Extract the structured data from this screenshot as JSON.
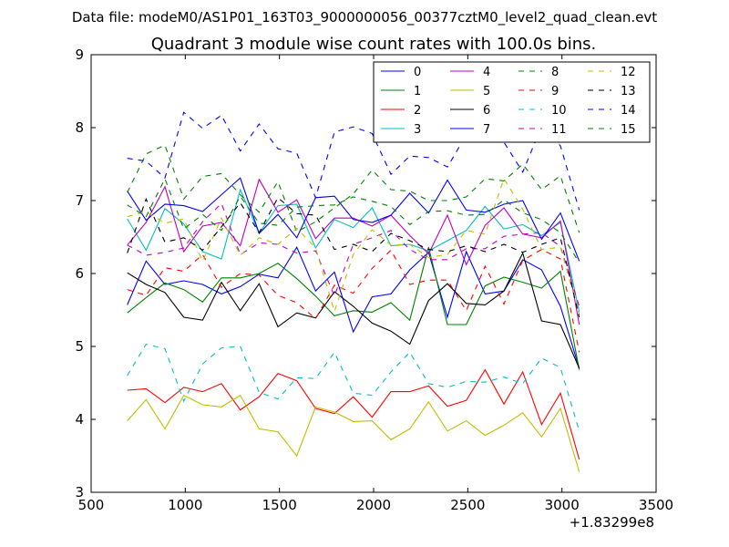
{
  "figure": {
    "suptitle": "Data file: modeM0/AS1P01_163T03_9000000056_00377cztM0_level2_quad_clean.evt",
    "offset_text": "+1.83299e8"
  },
  "chart_data": {
    "type": "line",
    "title": "Quadrant 3 module wise count rates with 100.0s bins.",
    "xlabel": "",
    "ylabel": "",
    "xlim": [
      500,
      3500
    ],
    "ylim": [
      3,
      9
    ],
    "x_ticks": [
      500,
      1000,
      1500,
      2000,
      2500,
      3000,
      3500
    ],
    "x_tick_labels": [
      "500",
      "1000",
      "1500",
      "2000",
      "2500",
      "3000",
      "3500"
    ],
    "y_ticks": [
      3,
      4,
      5,
      6,
      7,
      8,
      9
    ],
    "y_tick_labels": [
      "3",
      "4",
      "5",
      "6",
      "7",
      "8",
      "9"
    ],
    "x_offset": 183299000,
    "grid": false,
    "legend_position": "top-right",
    "x": [
      692,
      792,
      892,
      992,
      1092,
      1192,
      1292,
      1392,
      1492,
      1592,
      1692,
      1792,
      1892,
      1992,
      2092,
      2192,
      2292,
      2392,
      2492,
      2592,
      2692,
      2792,
      2892,
      2992,
      3092
    ],
    "series": [
      {
        "name": "0",
        "color": "#0000ff",
        "dash": "solid",
        "values": [
          5.57,
          6.17,
          5.85,
          5.9,
          5.85,
          5.72,
          5.82,
          5.99,
          5.94,
          6.36,
          5.76,
          6.02,
          5.2,
          5.68,
          5.72,
          6.05,
          6.29,
          5.4,
          6.3,
          5.72,
          5.76,
          6.19,
          6.05,
          5.55,
          4.7
        ]
      },
      {
        "name": "1",
        "color": "#008000",
        "dash": "solid",
        "values": [
          5.46,
          5.67,
          5.87,
          5.78,
          5.61,
          5.94,
          5.94,
          6.0,
          6.14,
          5.93,
          5.69,
          5.42,
          5.49,
          5.47,
          5.6,
          5.36,
          6.36,
          5.3,
          5.3,
          5.83,
          5.95,
          5.88,
          5.8,
          6.03,
          4.68
        ]
      },
      {
        "name": "2",
        "color": "#ff0000",
        "dash": "solid",
        "values": [
          4.4,
          4.42,
          4.23,
          4.44,
          4.38,
          4.49,
          4.13,
          4.31,
          4.63,
          4.53,
          4.15,
          4.08,
          4.31,
          4.03,
          4.38,
          4.38,
          4.46,
          4.18,
          4.26,
          4.68,
          4.21,
          4.65,
          3.93,
          4.36,
          3.45
        ]
      },
      {
        "name": "3",
        "color": "#00bfbf",
        "dash": "solid",
        "values": [
          6.75,
          6.32,
          6.89,
          6.68,
          6.3,
          6.2,
          7.15,
          6.55,
          6.93,
          6.95,
          6.35,
          6.74,
          6.63,
          6.9,
          6.38,
          6.4,
          6.31,
          6.45,
          6.59,
          6.92,
          6.61,
          6.67,
          6.52,
          6.7,
          5.47
        ]
      },
      {
        "name": "4",
        "color": "#bf00bf",
        "dash": "solid",
        "values": [
          6.39,
          6.7,
          7.19,
          6.3,
          6.65,
          6.7,
          6.38,
          7.29,
          6.84,
          7.01,
          6.48,
          6.76,
          6.76,
          6.65,
          6.8,
          6.52,
          6.27,
          6.8,
          6.12,
          6.66,
          6.9,
          6.54,
          6.49,
          6.72,
          5.3
        ]
      },
      {
        "name": "5",
        "color": "#bfbf00",
        "dash": "solid",
        "values": [
          3.98,
          4.27,
          3.87,
          4.33,
          4.2,
          4.17,
          4.33,
          3.87,
          3.83,
          3.5,
          4.17,
          4.1,
          3.97,
          3.98,
          3.72,
          3.87,
          4.24,
          3.84,
          3.98,
          3.78,
          3.92,
          4.09,
          3.76,
          4.15,
          3.28
        ]
      },
      {
        "name": "6",
        "color": "#000000",
        "dash": "solid",
        "values": [
          6.01,
          5.85,
          5.74,
          5.4,
          5.36,
          5.88,
          5.49,
          5.86,
          5.27,
          5.46,
          5.39,
          5.75,
          5.55,
          5.32,
          5.21,
          5.03,
          5.63,
          5.86,
          5.59,
          5.57,
          5.76,
          6.28,
          5.35,
          5.3,
          4.7
        ]
      },
      {
        "name": "7",
        "color": "#0000ff",
        "dash": "solid",
        "values": [
          7.13,
          6.73,
          6.95,
          6.93,
          6.85,
          7.08,
          7.31,
          6.55,
          6.81,
          6.49,
          7.04,
          7.06,
          6.74,
          6.7,
          6.8,
          7.1,
          6.83,
          7.28,
          6.87,
          6.84,
          6.95,
          7.0,
          6.47,
          6.83,
          6.17
        ]
      },
      {
        "name": "8",
        "color": "#008000",
        "dash": "dashed",
        "values": [
          7.11,
          7.64,
          7.76,
          7.02,
          7.33,
          7.37,
          7.08,
          6.84,
          7.26,
          6.57,
          6.71,
          6.9,
          7.09,
          7.42,
          7.15,
          7.13,
          7.0,
          7.0,
          7.05,
          7.3,
          7.27,
          7.5,
          7.15,
          7.34,
          6.56
        ]
      },
      {
        "name": "9",
        "color": "#ff0000",
        "dash": "dashed",
        "values": [
          5.78,
          5.7,
          6.08,
          6.03,
          6.26,
          5.81,
          6.0,
          5.98,
          5.7,
          5.6,
          5.38,
          5.84,
          5.73,
          6.07,
          6.32,
          5.85,
          5.91,
          5.91,
          5.49,
          6.1,
          5.58,
          6.18,
          6.33,
          6.2,
          4.92
        ]
      },
      {
        "name": "10",
        "color": "#00bfbf",
        "dash": "dashed",
        "values": [
          4.6,
          5.03,
          4.97,
          4.25,
          4.76,
          4.98,
          5.0,
          4.37,
          4.28,
          4.57,
          4.56,
          4.92,
          4.36,
          4.33,
          4.65,
          4.92,
          4.49,
          4.44,
          4.52,
          4.51,
          4.58,
          4.49,
          4.84,
          4.71,
          3.84
        ]
      },
      {
        "name": "11",
        "color": "#bf00bf",
        "dash": "dashed",
        "values": [
          6.39,
          6.25,
          6.29,
          6.35,
          6.71,
          6.96,
          6.26,
          6.42,
          6.4,
          6.28,
          6.31,
          5.69,
          6.4,
          6.49,
          6.59,
          6.33,
          6.19,
          6.19,
          6.34,
          6.34,
          6.51,
          6.54,
          6.56,
          6.37,
          5.55
        ]
      },
      {
        "name": "12",
        "color": "#bfbf00",
        "dash": "dashed",
        "values": [
          6.78,
          6.85,
          6.69,
          6.75,
          6.17,
          6.76,
          6.25,
          6.49,
          6.4,
          6.62,
          6.35,
          5.48,
          6.26,
          6.6,
          6.39,
          6.4,
          6.22,
          6.26,
          6.59,
          6.54,
          7.3,
          6.88,
          6.33,
          6.36,
          5.44
        ]
      },
      {
        "name": "13",
        "color": "#000000",
        "dash": "dashed",
        "values": [
          6.28,
          7.02,
          6.43,
          6.49,
          6.32,
          6.64,
          6.97,
          6.56,
          7.04,
          6.82,
          6.8,
          6.33,
          6.4,
          6.3,
          6.55,
          6.45,
          6.33,
          6.3,
          6.38,
          6.3,
          6.4,
          6.29,
          6.4,
          6.49,
          5.4
        ]
      },
      {
        "name": "14",
        "color": "#0000ff",
        "dash": "dashed",
        "values": [
          7.58,
          7.54,
          7.31,
          8.21,
          7.99,
          8.17,
          7.68,
          8.05,
          7.71,
          7.65,
          7.04,
          7.94,
          8.01,
          7.92,
          7.36,
          7.61,
          7.59,
          7.46,
          7.9,
          8.4,
          7.8,
          7.39,
          8.02,
          7.75,
          6.87
        ]
      },
      {
        "name": "15",
        "color": "#008000",
        "dash": "dashed",
        "values": [
          6.94,
          6.78,
          7.3,
          6.61,
          6.81,
          6.59,
          7.06,
          6.69,
          6.66,
          6.91,
          6.93,
          6.94,
          7.05,
          6.99,
          6.92,
          6.67,
          6.85,
          6.86,
          6.8,
          6.81,
          7.01,
          6.83,
          6.74,
          6.56,
          6.15
        ]
      }
    ]
  }
}
